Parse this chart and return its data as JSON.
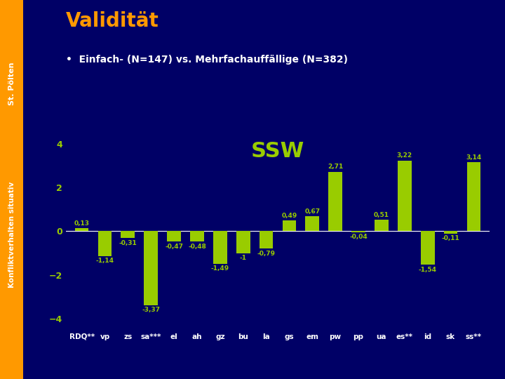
{
  "title": "Validität",
  "subtitle": "Einfach- (N=147) vs. Mehrfachauffällige (N=382)",
  "ssw_label": "SSW",
  "side_label_top": "St. Pölten",
  "side_label_bottom": "Konfliktverhalten situativ",
  "categories": [
    "RDQ**",
    "vp",
    "zs",
    "sa***",
    "el",
    "ah",
    "gz",
    "bu",
    "la",
    "gs",
    "em",
    "pw",
    "pp",
    "ua",
    "es**",
    "id",
    "sk",
    "ss**"
  ],
  "values": [
    0.13,
    -1.14,
    -0.31,
    -3.37,
    -0.47,
    -0.48,
    -1.49,
    -1.0,
    -0.79,
    0.49,
    0.67,
    2.71,
    -0.04,
    0.51,
    3.22,
    -1.54,
    -0.11,
    3.14
  ],
  "bar_color": "#99CC00",
  "bg_color": "#000066",
  "title_color": "#FF9900",
  "subtitle_color": "#FFFFFF",
  "ssw_color": "#99CC00",
  "axis_label_color": "#99CC00",
  "value_label_color": "#99CC00",
  "tick_label_color": "#FFFFFF",
  "side_label_color": "#FF9900",
  "ylim": [
    -4.5,
    4.5
  ],
  "yticks": [
    -4,
    -2,
    0,
    2,
    4
  ]
}
